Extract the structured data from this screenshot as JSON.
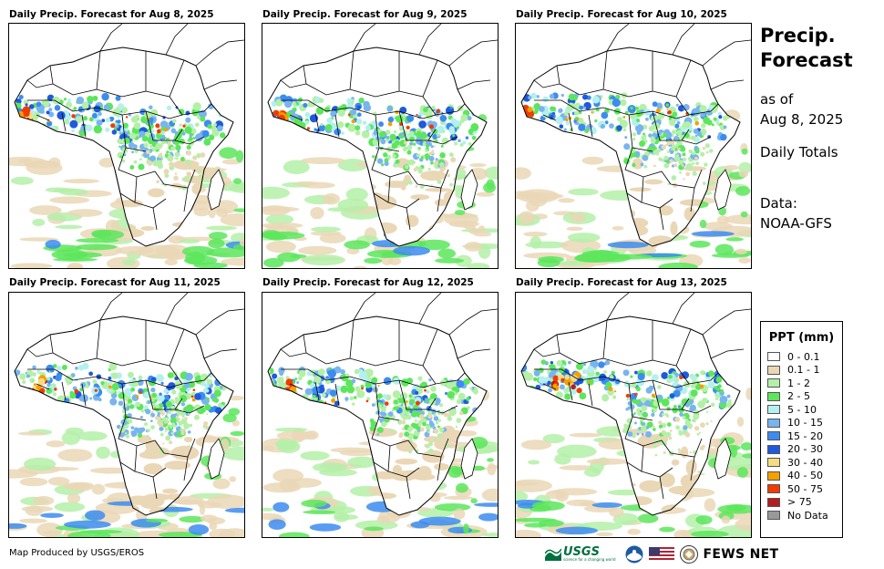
{
  "panels": [
    {
      "title": "Daily Precip. Forecast for Aug 8, 2025"
    },
    {
      "title": "Daily Precip. Forecast for Aug 9, 2025"
    },
    {
      "title": "Daily Precip. Forecast for Aug 10, 2025"
    },
    {
      "title": "Daily Precip. Forecast for Aug 11, 2025"
    },
    {
      "title": "Daily Precip. Forecast for Aug 12, 2025"
    },
    {
      "title": "Daily Precip. Forecast for Aug 13, 2025"
    }
  ],
  "sidebar": {
    "title_line1": "Precip.",
    "title_line2": "Forecast",
    "asof_line1": "as of",
    "asof_line2": "Aug 8, 2025",
    "totals": "Daily Totals",
    "data_line1": "Data:",
    "data_line2": "NOAA-GFS"
  },
  "legend": {
    "title": "PPT (mm)",
    "items": [
      {
        "label": "0 - 0.1",
        "color": "#ffffff"
      },
      {
        "label": "0.1 - 1",
        "color": "#ead7b6"
      },
      {
        "label": "1 - 2",
        "color": "#b4f0a8"
      },
      {
        "label": "2 - 5",
        "color": "#5ce65c"
      },
      {
        "label": "5 - 10",
        "color": "#b4f0f0"
      },
      {
        "label": "10 - 15",
        "color": "#78b4f0"
      },
      {
        "label": "15 - 20",
        "color": "#3c8cf0"
      },
      {
        "label": "20 - 30",
        "color": "#1e5adc"
      },
      {
        "label": "30 - 40",
        "color": "#f5dc82"
      },
      {
        "label": "40 - 50",
        "color": "#f5a000"
      },
      {
        "label": "50 - 75",
        "color": "#f03c00"
      },
      {
        "label": "> 75",
        "color": "#b41e1e"
      },
      {
        "label": "No Data",
        "color": "#999999"
      }
    ]
  },
  "footer": {
    "credit": "Map Produced by USGS/EROS",
    "usgs": "USGS",
    "usgs_tagline": "science for a changing world",
    "fewsnet": "FEWS NET"
  }
}
